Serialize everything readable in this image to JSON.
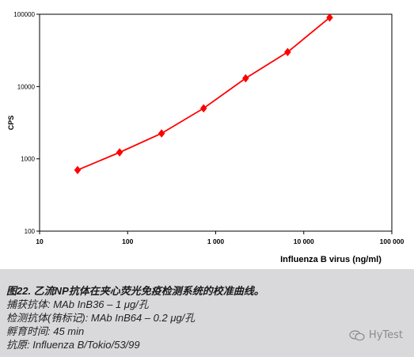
{
  "chart_data": {
    "type": "line",
    "title": "",
    "xlabel": "Influenza B virus (ng/ml)",
    "ylabel": "CPS",
    "x_scale": "log",
    "y_scale": "log",
    "xlim": [
      10,
      100000
    ],
    "ylim": [
      100,
      100000
    ],
    "x_ticks": [
      "10",
      "100",
      "1 000",
      "10 000",
      "100 000"
    ],
    "y_ticks": [
      "100",
      "1000",
      "10000",
      "100000"
    ],
    "grid": false,
    "legend": "none",
    "series": [
      {
        "color": "#ff0000",
        "marker": "diamond",
        "x": [
          27,
          81,
          243,
          729,
          2187,
          6561,
          19683
        ],
        "y": [
          700,
          1230,
          2250,
          5000,
          13000,
          30000,
          90000
        ]
      }
    ]
  },
  "caption": {
    "title": "图22. 乙流NP抗体在夹心荧光免疫检测系统的校准曲线。",
    "capture": "捕获抗体: MAb InB36 – 1 μg/孔",
    "detection": "检测抗体(铕标记): MAb InB64 – 0.2 μg/孔",
    "incubation": "孵育时间: 45 min",
    "antigen": "抗原: Influenza B/Tokio/53/99"
  },
  "watermark": {
    "text": "HyTest",
    "icon": "wechat-icon"
  }
}
